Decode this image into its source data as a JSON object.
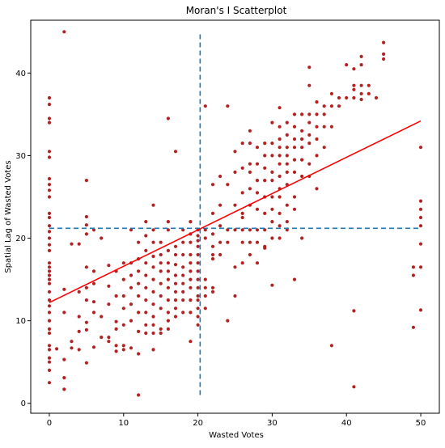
{
  "chart_data": {
    "type": "scatter",
    "title": "Moran's I Scatterplot",
    "xlabel": "Wasted Votes",
    "ylabel": "Spatial Lag of Wasted Votes",
    "xlim": [
      -2.5,
      52.5
    ],
    "ylim": [
      -1.2,
      46.4
    ],
    "xticks": [
      0,
      10,
      20,
      30,
      40,
      50
    ],
    "yticks": [
      0,
      10,
      20,
      30,
      40
    ],
    "grid": false,
    "point_color": "#b22222",
    "fit_line": {
      "color": "#ff0000",
      "x": [
        0,
        50
      ],
      "y": [
        12.2,
        34.2
      ]
    },
    "mean_lines": {
      "color": "#1f77b4",
      "style": "dashed",
      "x_mean": 20.3,
      "y_mean": 21.2,
      "x_span": [
        1.0,
        45.0
      ],
      "y_span": [
        0,
        50
      ]
    },
    "points": [
      [
        0,
        37
      ],
      [
        0,
        36.2
      ],
      [
        0,
        34.5
      ],
      [
        0,
        34
      ],
      [
        0,
        30.5
      ],
      [
        0,
        29.8
      ],
      [
        0,
        27.2
      ],
      [
        0,
        26.5
      ],
      [
        0,
        25.8
      ],
      [
        0,
        25
      ],
      [
        0,
        23
      ],
      [
        0,
        22.5
      ],
      [
        0,
        21.5
      ],
      [
        0,
        20.8
      ],
      [
        0,
        20
      ],
      [
        0,
        19.2
      ],
      [
        0,
        18.5
      ],
      [
        0,
        17
      ],
      [
        0,
        16.5
      ],
      [
        0,
        16
      ],
      [
        0,
        15.5
      ],
      [
        0,
        15
      ],
      [
        0,
        14.5
      ],
      [
        0,
        13.5
      ],
      [
        0,
        12.5
      ],
      [
        0,
        11.8
      ],
      [
        0,
        11
      ],
      [
        0,
        10
      ],
      [
        0,
        9
      ],
      [
        0,
        8.5
      ],
      [
        0,
        7
      ],
      [
        0,
        6.5
      ],
      [
        0,
        5.5
      ],
      [
        0,
        5
      ],
      [
        0,
        4
      ],
      [
        0,
        2.5
      ],
      [
        1,
        6.6
      ],
      [
        2,
        45
      ],
      [
        2,
        13.8
      ],
      [
        2,
        11
      ],
      [
        2,
        5.3
      ],
      [
        2,
        3.1
      ],
      [
        2,
        1.7
      ],
      [
        3,
        19.3
      ],
      [
        3,
        7.5
      ],
      [
        3,
        6.7
      ],
      [
        4,
        19.3
      ],
      [
        4,
        13.5
      ],
      [
        4,
        10.5
      ],
      [
        4,
        8.7
      ],
      [
        4,
        6.5
      ],
      [
        5,
        27
      ],
      [
        5,
        22.6
      ],
      [
        5,
        21.6
      ],
      [
        5,
        20.5
      ],
      [
        5,
        16.5
      ],
      [
        5,
        14
      ],
      [
        5,
        12.5
      ],
      [
        5,
        9.8
      ],
      [
        5,
        8.9
      ],
      [
        5,
        4.9
      ],
      [
        6,
        21
      ],
      [
        6,
        16
      ],
      [
        6,
        14.5
      ],
      [
        6,
        12.3
      ],
      [
        6,
        11
      ],
      [
        6,
        6.8
      ],
      [
        7,
        20
      ],
      [
        7,
        10.5
      ],
      [
        7,
        8
      ],
      [
        8,
        16.7
      ],
      [
        8,
        14.2
      ],
      [
        8,
        12
      ],
      [
        8,
        8
      ],
      [
        8,
        7.5
      ],
      [
        9,
        16
      ],
      [
        9,
        13
      ],
      [
        9,
        9.9
      ],
      [
        9,
        9
      ],
      [
        9,
        7
      ],
      [
        9,
        6.3
      ],
      [
        10,
        17
      ],
      [
        10,
        15
      ],
      [
        10,
        13
      ],
      [
        10,
        11.5
      ],
      [
        10,
        9.5
      ],
      [
        10,
        7
      ],
      [
        10,
        6.5
      ],
      [
        11,
        21
      ],
      [
        11,
        17
      ],
      [
        11,
        15.5
      ],
      [
        11,
        14
      ],
      [
        11,
        12
      ],
      [
        11,
        10
      ],
      [
        11,
        6.7
      ],
      [
        12,
        19.5
      ],
      [
        12,
        17.5
      ],
      [
        12,
        16
      ],
      [
        12,
        14.5
      ],
      [
        12,
        13
      ],
      [
        12,
        11
      ],
      [
        12,
        8.7
      ],
      [
        12,
        6
      ],
      [
        12,
        1
      ],
      [
        13,
        22
      ],
      [
        13,
        20.3
      ],
      [
        13,
        18.5
      ],
      [
        13,
        17
      ],
      [
        13,
        15.5
      ],
      [
        13,
        14
      ],
      [
        13,
        12.5
      ],
      [
        13,
        11
      ],
      [
        13,
        9.5
      ],
      [
        13,
        8.5
      ],
      [
        14,
        24
      ],
      [
        14,
        21
      ],
      [
        14,
        19.5
      ],
      [
        14,
        17.8
      ],
      [
        14,
        16.5
      ],
      [
        14,
        15
      ],
      [
        14,
        13.5
      ],
      [
        14,
        12
      ],
      [
        14,
        10.5
      ],
      [
        14,
        9.5
      ],
      [
        14,
        8.5
      ],
      [
        14,
        6.5
      ],
      [
        15,
        19.5
      ],
      [
        15,
        18
      ],
      [
        15,
        17
      ],
      [
        15,
        16
      ],
      [
        15,
        14.5
      ],
      [
        15,
        13
      ],
      [
        15,
        11.5
      ],
      [
        15,
        9
      ],
      [
        15,
        8.5
      ],
      [
        16,
        34.5
      ],
      [
        16,
        22
      ],
      [
        16,
        21
      ],
      [
        16,
        18.5
      ],
      [
        16,
        17
      ],
      [
        16,
        16
      ],
      [
        16,
        15
      ],
      [
        16,
        14
      ],
      [
        16,
        12.5
      ],
      [
        16,
        11
      ],
      [
        16,
        10
      ],
      [
        16,
        9
      ],
      [
        17,
        30.5
      ],
      [
        17,
        19
      ],
      [
        17,
        18
      ],
      [
        17,
        16.8
      ],
      [
        17,
        15.5
      ],
      [
        17,
        14.5
      ],
      [
        17,
        13.5
      ],
      [
        17,
        12.5
      ],
      [
        17,
        11.5
      ],
      [
        17,
        10.5
      ],
      [
        18,
        21
      ],
      [
        18,
        19.5
      ],
      [
        18,
        18
      ],
      [
        18,
        16.5
      ],
      [
        18,
        15.5
      ],
      [
        18,
        14.5
      ],
      [
        18,
        13.5
      ],
      [
        18,
        12.5
      ],
      [
        18,
        11
      ],
      [
        19,
        22
      ],
      [
        19,
        20.5
      ],
      [
        19,
        19.5
      ],
      [
        19,
        18
      ],
      [
        19,
        17
      ],
      [
        19,
        16
      ],
      [
        19,
        15
      ],
      [
        19,
        14
      ],
      [
        19,
        12.5
      ],
      [
        19,
        11
      ],
      [
        19,
        7.5
      ],
      [
        20,
        21
      ],
      [
        20,
        20.3
      ],
      [
        20,
        19.7
      ],
      [
        20,
        19
      ],
      [
        20,
        18
      ],
      [
        20,
        17
      ],
      [
        20,
        16
      ],
      [
        20,
        15
      ],
      [
        20,
        14
      ],
      [
        20,
        13
      ],
      [
        20,
        12.5
      ],
      [
        20,
        11.5
      ],
      [
        20,
        10.5
      ],
      [
        20,
        9.5
      ],
      [
        21,
        36
      ],
      [
        21,
        21
      ],
      [
        21,
        20
      ],
      [
        21,
        15
      ],
      [
        21,
        14
      ],
      [
        21,
        13
      ],
      [
        21,
        11.5
      ],
      [
        22,
        26.5
      ],
      [
        22,
        23
      ],
      [
        22,
        20.5
      ],
      [
        22,
        19
      ],
      [
        22,
        18
      ],
      [
        22,
        17.5
      ],
      [
        22,
        14
      ],
      [
        22,
        13.5
      ],
      [
        23,
        27.5
      ],
      [
        23,
        24
      ],
      [
        23,
        21.5
      ],
      [
        23,
        19.5
      ],
      [
        23,
        18
      ],
      [
        24,
        36
      ],
      [
        24,
        26.5
      ],
      [
        24,
        21
      ],
      [
        24,
        19.5
      ],
      [
        24,
        10
      ],
      [
        25,
        30.5
      ],
      [
        25,
        28
      ],
      [
        25,
        24
      ],
      [
        25,
        21
      ],
      [
        25,
        16.5
      ],
      [
        25,
        13
      ],
      [
        26,
        31.5
      ],
      [
        26,
        28.5
      ],
      [
        26,
        25.5
      ],
      [
        26,
        23
      ],
      [
        26,
        22.5
      ],
      [
        26,
        21
      ],
      [
        26,
        19.5
      ],
      [
        26,
        17
      ],
      [
        27,
        33
      ],
      [
        27,
        31.5
      ],
      [
        27,
        29
      ],
      [
        27,
        28
      ],
      [
        27,
        26
      ],
      [
        27,
        24
      ],
      [
        27,
        21
      ],
      [
        27,
        19.5
      ],
      [
        27,
        18
      ],
      [
        28,
        31
      ],
      [
        28,
        29
      ],
      [
        28,
        27
      ],
      [
        28,
        25.5
      ],
      [
        28,
        23.5
      ],
      [
        28,
        21
      ],
      [
        28,
        19.5
      ],
      [
        28,
        17
      ],
      [
        29,
        31.5
      ],
      [
        29,
        30
      ],
      [
        29,
        28.5
      ],
      [
        29,
        27
      ],
      [
        29,
        25
      ],
      [
        29,
        23
      ],
      [
        29,
        21
      ],
      [
        29,
        19
      ],
      [
        29,
        18.8
      ],
      [
        30,
        34
      ],
      [
        30,
        31.5
      ],
      [
        30,
        30
      ],
      [
        30,
        28
      ],
      [
        30,
        27
      ],
      [
        30,
        25
      ],
      [
        30,
        23.5
      ],
      [
        30,
        22
      ],
      [
        30,
        20
      ],
      [
        30,
        14.3
      ],
      [
        31,
        35.8
      ],
      [
        31,
        33.5
      ],
      [
        31,
        32
      ],
      [
        31,
        31
      ],
      [
        31,
        30
      ],
      [
        31,
        29
      ],
      [
        31,
        27.5
      ],
      [
        31,
        26
      ],
      [
        31,
        25
      ],
      [
        31,
        23
      ],
      [
        31,
        21.5
      ],
      [
        31,
        20
      ],
      [
        32,
        34
      ],
      [
        32,
        32.5
      ],
      [
        32,
        31
      ],
      [
        32,
        30
      ],
      [
        32,
        29
      ],
      [
        32,
        28
      ],
      [
        32,
        26.5
      ],
      [
        32,
        24
      ],
      [
        32,
        22
      ],
      [
        32,
        21
      ],
      [
        33,
        35
      ],
      [
        33,
        33.5
      ],
      [
        33,
        32
      ],
      [
        33,
        31
      ],
      [
        33,
        29.5
      ],
      [
        33,
        28
      ],
      [
        33,
        25
      ],
      [
        33,
        23.5
      ],
      [
        33,
        15
      ],
      [
        34,
        35
      ],
      [
        34,
        33
      ],
      [
        34,
        32
      ],
      [
        34,
        31
      ],
      [
        34,
        29.5
      ],
      [
        34,
        27.5
      ],
      [
        34,
        20
      ],
      [
        35,
        40.7
      ],
      [
        35,
        38.5
      ],
      [
        35,
        35
      ],
      [
        35,
        34
      ],
      [
        35,
        32.5
      ],
      [
        35,
        31.5
      ],
      [
        35,
        29
      ],
      [
        35,
        27.5
      ],
      [
        36,
        36.5
      ],
      [
        36,
        35
      ],
      [
        36,
        33.5
      ],
      [
        36,
        32
      ],
      [
        36,
        30
      ],
      [
        36,
        26
      ],
      [
        37,
        36
      ],
      [
        37,
        35
      ],
      [
        37,
        33.5
      ],
      [
        37,
        31
      ],
      [
        38,
        37.5
      ],
      [
        38,
        36
      ],
      [
        38,
        33.5
      ],
      [
        38,
        7
      ],
      [
        39,
        37
      ],
      [
        39,
        36
      ],
      [
        40,
        41
      ],
      [
        40,
        37
      ],
      [
        41,
        40.5
      ],
      [
        41,
        38.5
      ],
      [
        41,
        38
      ],
      [
        41,
        37
      ],
      [
        41,
        11.2
      ],
      [
        41,
        2
      ],
      [
        42,
        42
      ],
      [
        42,
        41
      ],
      [
        42,
        38.5
      ],
      [
        42,
        37.5
      ],
      [
        42,
        36.8
      ],
      [
        43,
        38.5
      ],
      [
        43,
        37.5
      ],
      [
        44,
        37
      ],
      [
        45,
        43.7
      ],
      [
        45,
        42.3
      ],
      [
        45,
        41.7
      ],
      [
        49,
        16.5
      ],
      [
        49,
        15.5
      ],
      [
        49,
        9.2
      ],
      [
        50,
        31
      ],
      [
        50,
        24.5
      ],
      [
        50,
        23.5
      ],
      [
        50,
        22.5
      ],
      [
        50,
        21.5
      ],
      [
        50,
        19.3
      ],
      [
        50,
        16.5
      ],
      [
        50,
        11.3
      ]
    ]
  }
}
